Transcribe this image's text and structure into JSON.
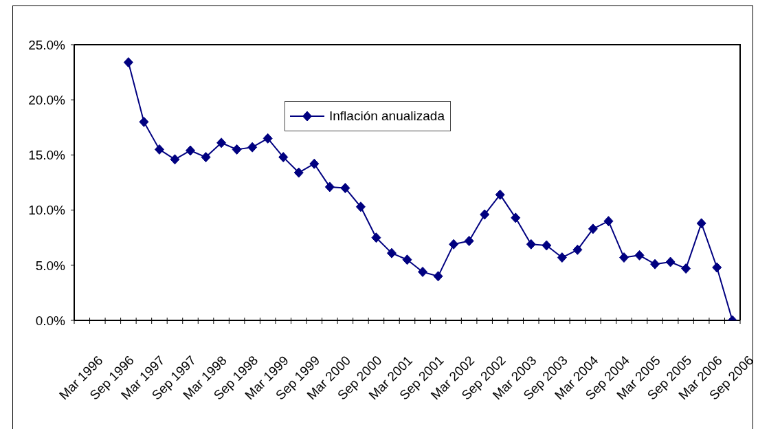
{
  "chart_data": {
    "type": "line",
    "categories": [
      "Mar 1996",
      null,
      "Sep 1996",
      null,
      "Mar 1997",
      null,
      "Sep 1997",
      null,
      "Mar 1998",
      null,
      "Sep 1998",
      null,
      "Mar 1999",
      null,
      "Sep 1999",
      null,
      "Mar 2000",
      null,
      "Sep 2000",
      null,
      "Mar 2001",
      null,
      "Sep 2001",
      null,
      "Mar 2002",
      null,
      "Sep 2002",
      null,
      "Mar 2003",
      null,
      "Sep 2003",
      null,
      "Mar 2004",
      null,
      "Sep 2004",
      null,
      "Mar 2005",
      null,
      "Sep 2005",
      null,
      "Mar 2006",
      null,
      "Sep 2006"
    ],
    "series": [
      {
        "name": "Inflación anualizada",
        "color": "#000080",
        "values": [
          null,
          null,
          null,
          23.4,
          18.0,
          15.5,
          14.6,
          15.4,
          14.8,
          16.1,
          15.5,
          15.7,
          16.5,
          14.8,
          13.4,
          14.2,
          12.1,
          12.0,
          10.3,
          7.5,
          6.1,
          5.5,
          4.4,
          4.0,
          6.9,
          7.2,
          9.6,
          11.4,
          9.3,
          6.9,
          6.8,
          5.7,
          6.4,
          8.3,
          9.0,
          5.7,
          5.9,
          5.1,
          5.3,
          4.7,
          8.8,
          4.8,
          0.0
        ]
      }
    ],
    "ylim": [
      0,
      25
    ],
    "yticks": [
      {
        "value": 0,
        "label": "0.0%"
      },
      {
        "value": 5,
        "label": "5.0%"
      },
      {
        "value": 10,
        "label": "10.0%"
      },
      {
        "value": 15,
        "label": "15.0%"
      },
      {
        "value": 20,
        "label": "20.0%"
      },
      {
        "value": 25,
        "label": "25.0%"
      }
    ],
    "legend": "top",
    "marker": "diamond",
    "line_style": "solid"
  }
}
